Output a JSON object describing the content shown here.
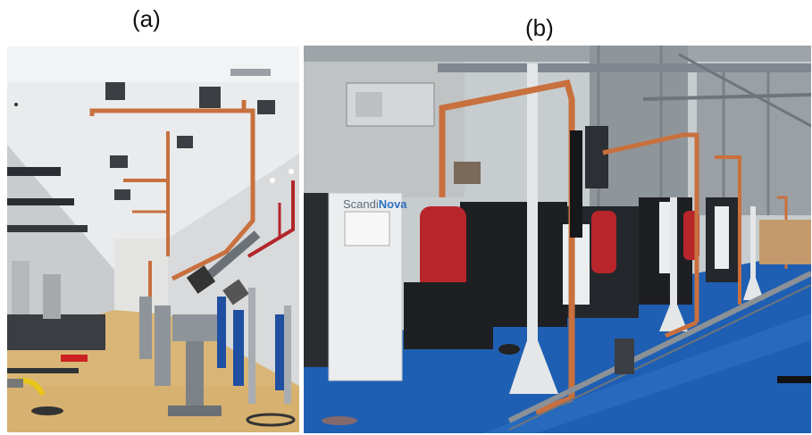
{
  "labels": {
    "panel_a": "(a)",
    "panel_b": "(b)"
  },
  "panel_b": {
    "cabinet_brand": "Scandi",
    "cabinet_brand_accent": "Nova"
  },
  "colors": {
    "copper": "#c8703e",
    "floor_a": "#d9b677",
    "floor_b": "#1e5fb3",
    "red_tank": "#b8262b",
    "cabinet_white": "#ecedee",
    "cabinet_black": "#1d1f22",
    "steel": "#8e9499"
  }
}
